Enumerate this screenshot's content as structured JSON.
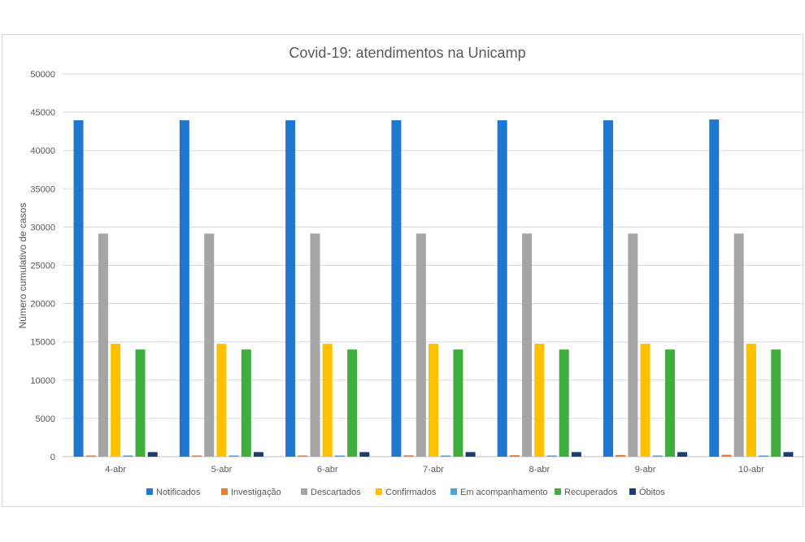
{
  "chart_data": {
    "type": "bar",
    "title": "Covid-19: atendimentos na Unicamp",
    "xlabel": "",
    "ylabel": "Número  cumulativo de casos",
    "ylim": [
      0,
      50000
    ],
    "yticks": [
      0,
      5000,
      10000,
      15000,
      20000,
      25000,
      30000,
      35000,
      40000,
      45000,
      50000
    ],
    "grid": true,
    "legend_position": "bottom",
    "categories": [
      "4-abr",
      "5-abr",
      "6-abr",
      "7-abr",
      "8-abr",
      "9-abr",
      "10-abr"
    ],
    "series": [
      {
        "name": "Notificados",
        "color": "#1f77d0",
        "values": [
          43950,
          43950,
          43950,
          43950,
          43950,
          43950,
          44050
        ]
      },
      {
        "name": "Investigação",
        "color": "#ed7d31",
        "values": [
          100,
          120,
          150,
          180,
          200,
          220,
          250
        ]
      },
      {
        "name": "Descartados",
        "color": "#a5a5a5",
        "values": [
          29150,
          29150,
          29150,
          29150,
          29150,
          29150,
          29150
        ]
      },
      {
        "name": "Confirmados",
        "color": "#ffc000",
        "values": [
          14750,
          14750,
          14750,
          14750,
          14750,
          14750,
          14750
        ]
      },
      {
        "name": "Em acompanhamento",
        "color": "#4aa3df",
        "values": [
          60,
          60,
          60,
          60,
          60,
          60,
          60
        ]
      },
      {
        "name": "Recuperados",
        "color": "#3fae3f",
        "values": [
          14000,
          14000,
          14000,
          14000,
          14000,
          14000,
          14000
        ]
      },
      {
        "name": "Óbitos",
        "color": "#1a3e6e",
        "values": [
          600,
          600,
          600,
          600,
          600,
          600,
          600
        ]
      }
    ]
  }
}
